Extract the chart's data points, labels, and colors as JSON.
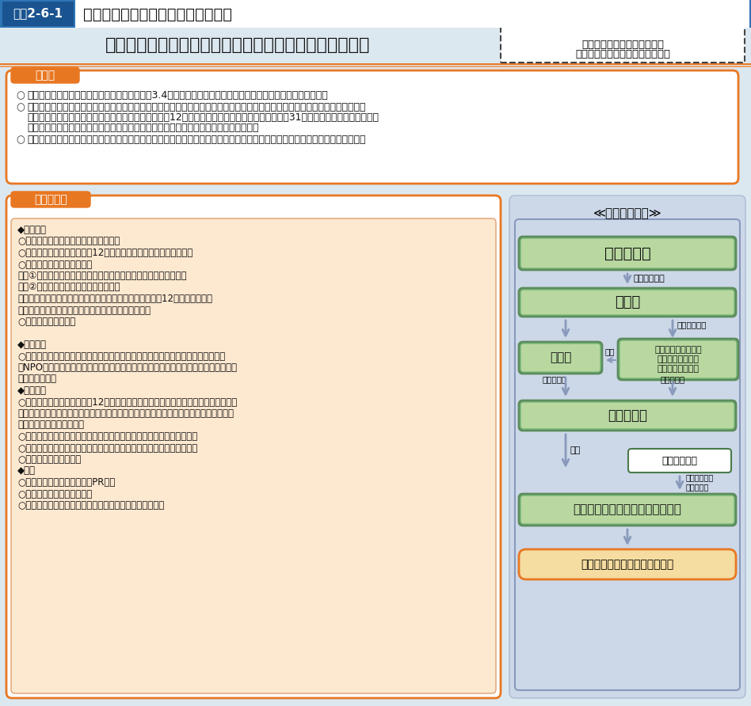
{
  "title_badge": "図表2-6-1",
  "title_text": "原子力災害対応雇用支援事業の概要",
  "header_bg": "#2e75b6",
  "body_bg": "#dce8f0",
  "main_title": "原　子　力　災　害　対　応　雇　用　支　援　事　業",
  "dashed_box_line1": "令和４年度予算額　制度要求",
  "dashed_box_line2": "（令和３年度予算額　制度要求）",
  "section1_label": "趣　旨",
  "section1_b1": "長引く原子力災害の影響により、依然として約3.4万人の被災者が福島県の内外に避難する状況が続いている。",
  "section1_b2a": "令和４年度以降も、住民の帰還が順次進捗し、帰還等を契機に、こうした避難者や被災後長期的に不安定な雇用状態にあった方",
  "section1_b2b": "が労働市場に流入することが予想されるものの、被災12市町村においては事業所の地元再開率は31％と未だ低い水準にとどまっ",
  "section1_b2c": "ており、帰還者の地元での雇用機会が十分に確保されているとはいえない状況にある。",
  "section1_b3": "こうした方々の雇用が安定するまでの準備期間に限り、次の雇用までの一時的な雇用・就業の場を確保し、生活の安定を図る。",
  "section2_label": "事業の概要",
  "lc1": "◆事業内容",
  "lc2": "○事業開始可能期間：令和４年度末まで",
  "lc3": "○実施地域：原子力災害被災12市町村及びその出張所等所在自治体",
  "lc4": "○対象者：福島県被災求職者",
  "lc5": "　　①原子力災害発生により福島県に所在する事業所を離職した者",
  "lc6": "　　②発災時に福島県に居住していた者",
  "lc7": "　のいずれかに該当し、かつ過去１年間に原子力災害被災12市町村で原子力",
  "lc8": "　災害対応雇用支援事業以外の仕事に就いていない者",
  "lc9": "○雇用期間：１年以内",
  "lc10": "",
  "lc11": "◆事業概要",
  "lc12": "○次の安定雇用までの一時的な雇用の場を求める福島県被災求職者に対し、企業、",
  "lc13": "　NPO等への委託により、雇用・就業機会を創出した上で、人材育成を実施し生活の",
  "lc14": "　安定を図る。",
  "lc15": "◆実施要件",
  "lc16": "○福島県又は原子力災害被災12市町村及びその出張所等所在自治体が実施する原子力",
  "lc17": "　災害由来の事業であって他の事業で措置できない事業であり、かつ既存事業の振替で",
  "lc18": "　ない事業を対象とする。",
  "lc19": "○次の安定雇用への円滑な移行につながる人材育成を併せて実施する。",
  "lc20": "○事業費に占める新規に雇用される対象者の人件費割合は１／２以上。",
  "lc21": "○雇用期間終了後更新可",
  "lc22": "◆事例",
  "lc23": "○被災地域地場産品風評払拭PR業務",
  "lc24": "○公共施設等放射線測定業務",
  "lc25": "○被災児童・生徒のための送迎用スクールバスの添乗業務",
  "scheme_title": "≪事業スキーム≫",
  "scheme_box1": "厚生労働省",
  "scheme_label1": "交付金の交付",
  "scheme_box2": "基　金",
  "scheme_box3": "福島県",
  "scheme_box4": "原子力災害被災１２\n市町村及びその出\n張所等所在自治体",
  "scheme_label_left": "事業を委託",
  "scheme_label_right": "事業を委託",
  "scheme_label_yosei": "要請",
  "scheme_label_kikin": "基金から補助",
  "scheme_box5": "民間企業等",
  "scheme_label_koyo": "雇用",
  "scheme_box6": "ハローワーク",
  "scheme_label_matching": "求人・求職の\nマッチング",
  "scheme_box7": "福　島　県　被　災　求　職　者",
  "scheme_bottom": "一時的な雇用・就業機会の創出",
  "orange": "#e87722",
  "orange_light": "#f5c58a",
  "green_outer": "#5c8c5c",
  "green_inner": "#b8d8a0",
  "green_mid": "#7ab87a",
  "scheme_bg": "#ccd8e8",
  "arrow_color": "#8899bb",
  "white": "#ffffff"
}
